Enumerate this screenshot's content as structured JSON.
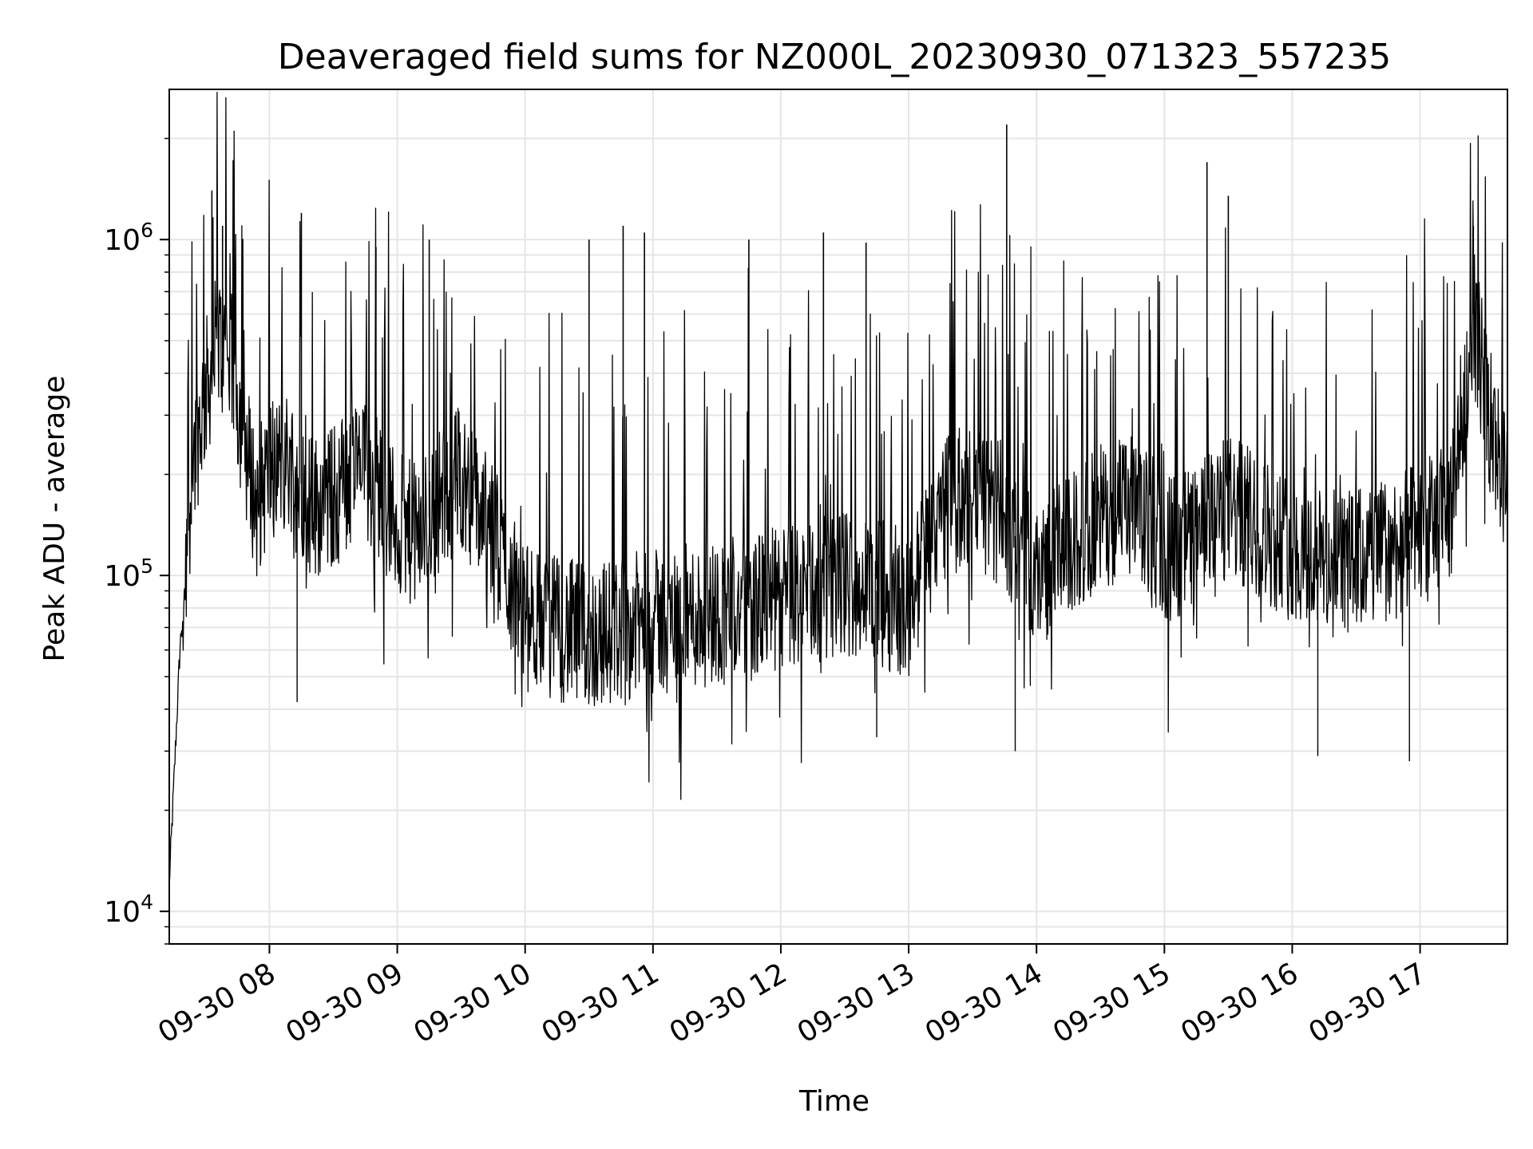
{
  "chart_data": {
    "type": "line",
    "title": "Deaveraged field sums for NZ000L_20230930_071323_557235",
    "xlabel": "Time",
    "ylabel": "Peak ADU - average",
    "yscale": "log",
    "ylim": [
      8000,
      2800000
    ],
    "xlim": [
      "2023-09-30 07:13",
      "2023-09-30 17:41"
    ],
    "grid": true,
    "line_color": "#000000",
    "grid_color": "#e5e5e5",
    "x_ticks": [
      {
        "t": "2023-09-30 08:00",
        "label": "09-30 08"
      },
      {
        "t": "2023-09-30 09:00",
        "label": "09-30 09"
      },
      {
        "t": "2023-09-30 10:00",
        "label": "09-30 10"
      },
      {
        "t": "2023-09-30 11:00",
        "label": "09-30 11"
      },
      {
        "t": "2023-09-30 12:00",
        "label": "09-30 12"
      },
      {
        "t": "2023-09-30 13:00",
        "label": "09-30 13"
      },
      {
        "t": "2023-09-30 14:00",
        "label": "09-30 14"
      },
      {
        "t": "2023-09-30 15:00",
        "label": "09-30 15"
      },
      {
        "t": "2023-09-30 16:00",
        "label": "09-30 16"
      },
      {
        "t": "2023-09-30 17:00",
        "label": "09-30 17"
      }
    ],
    "y_ticks": [
      {
        "value": 10000,
        "base": "10",
        "exp": "4"
      },
      {
        "value": 100000,
        "base": "10",
        "exp": "5"
      },
      {
        "value": 1000000,
        "base": "10",
        "exp": "6"
      }
    ],
    "series": [
      {
        "x": [
          "2023-09-30 07:13",
          "2023-09-30 07:18",
          "2023-09-30 07:24",
          "2023-09-30 07:30",
          "2023-09-30 07:36",
          "2023-09-30 07:42",
          "2023-09-30 07:48",
          "2023-09-30 07:54",
          "2023-09-30 08:00",
          "2023-09-30 08:10",
          "2023-09-30 08:20",
          "2023-09-30 08:30",
          "2023-09-30 08:40",
          "2023-09-30 08:50",
          "2023-09-30 09:00",
          "2023-09-30 09:10",
          "2023-09-30 09:20",
          "2023-09-30 09:30",
          "2023-09-30 09:40",
          "2023-09-30 09:50",
          "2023-09-30 10:00",
          "2023-09-30 10:15",
          "2023-09-30 10:30",
          "2023-09-30 10:45",
          "2023-09-30 11:00",
          "2023-09-30 11:15",
          "2023-09-30 11:30",
          "2023-09-30 11:45",
          "2023-09-30 12:00",
          "2023-09-30 12:15",
          "2023-09-30 12:30",
          "2023-09-30 12:45",
          "2023-09-30 13:00",
          "2023-09-30 13:15",
          "2023-09-30 13:30",
          "2023-09-30 13:45",
          "2023-09-30 14:00",
          "2023-09-30 14:15",
          "2023-09-30 14:30",
          "2023-09-30 14:45",
          "2023-09-30 15:00",
          "2023-09-30 15:15",
          "2023-09-30 15:30",
          "2023-09-30 15:45",
          "2023-09-30 16:00",
          "2023-09-30 16:15",
          "2023-09-30 16:30",
          "2023-09-30 16:45",
          "2023-09-30 17:00",
          "2023-09-30 17:15",
          "2023-09-30 17:25",
          "2023-09-30 17:33",
          "2023-09-30 17:41"
        ],
        "values": [
          12000,
          60000,
          220000,
          350000,
          500000,
          430000,
          260000,
          160000,
          210000,
          220000,
          160000,
          170000,
          210000,
          190000,
          140000,
          130000,
          170000,
          200000,
          150000,
          110000,
          75000,
          70000,
          65000,
          70000,
          72000,
          75000,
          78000,
          80000,
          85000,
          90000,
          95000,
          90000,
          80000,
          160000,
          170000,
          150000,
          100000,
          120000,
          150000,
          160000,
          120000,
          130000,
          160000,
          140000,
          120000,
          110000,
          110000,
          120000,
          130000,
          160000,
          600000,
          280000,
          170000
        ]
      }
    ],
    "spikes": [
      {
        "t": "2023-09-30 07:33",
        "value": 1400000
      },
      {
        "t": "2023-09-30 07:38",
        "value": 1100000
      },
      {
        "t": "2023-09-30 08:15",
        "value": 1200000
      },
      {
        "t": "2023-09-30 08:50",
        "value": 950000
      },
      {
        "t": "2023-09-30 09:15",
        "value": 1000000
      },
      {
        "t": "2023-09-30 10:30",
        "value": 1000000
      },
      {
        "t": "2023-09-30 10:46",
        "value": 1100000
      },
      {
        "t": "2023-09-30 10:56",
        "value": 1050000
      },
      {
        "t": "2023-09-30 11:45",
        "value": 1000000
      },
      {
        "t": "2023-09-30 12:20",
        "value": 1050000
      },
      {
        "t": "2023-09-30 12:40",
        "value": 980000
      },
      {
        "t": "2023-09-30 13:46",
        "value": 2200000
      },
      {
        "t": "2023-09-30 15:20",
        "value": 1700000
      },
      {
        "t": "2023-09-30 15:30",
        "value": 1350000
      },
      {
        "t": "2023-09-30 17:25",
        "value": 1100000
      }
    ],
    "dips": [
      {
        "t": "2023-09-30 08:13",
        "value": 42000
      },
      {
        "t": "2023-09-30 12:45",
        "value": 33000
      },
      {
        "t": "2023-09-30 13:50",
        "value": 30000
      },
      {
        "t": "2023-09-30 16:12",
        "value": 29000
      },
      {
        "t": "2023-09-30 16:55",
        "value": 28000
      }
    ]
  }
}
